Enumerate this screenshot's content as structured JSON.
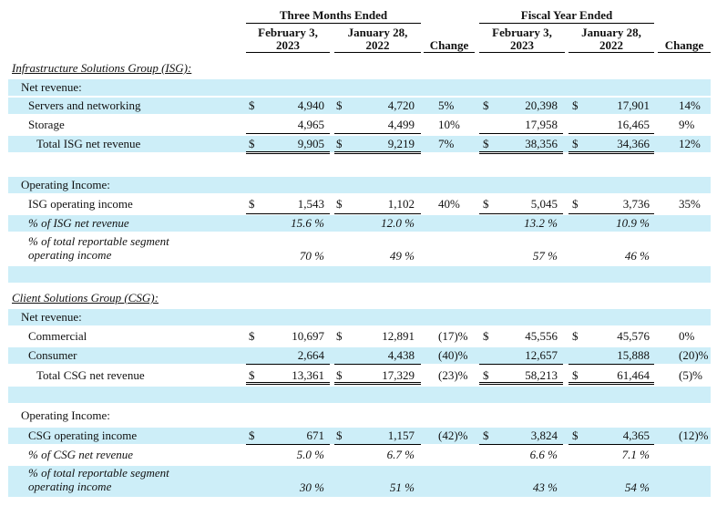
{
  "header": {
    "three_months": "Three Months Ended",
    "fiscal_year": "Fiscal Year Ended",
    "col_feb_line1": "February 3,",
    "col_feb_line2": "2023",
    "col_jan_line1": "January 28,",
    "col_jan_line2": "2022",
    "change": "Change"
  },
  "rows": [
    {
      "type": "section",
      "label": "Infrastructure Solutions Group (ISG):",
      "shaded": false
    },
    {
      "type": "label",
      "label": "Net revenue:",
      "shaded": true
    },
    {
      "type": "data",
      "label": "Servers and networking",
      "shaded": true,
      "indent": 1,
      "dollar": true,
      "q_cur": "4,940",
      "q_prev": "4,720",
      "q_chg": "5%",
      "f_cur": "20,398",
      "f_prev": "17,901",
      "f_chg": "14%"
    },
    {
      "type": "data",
      "label": "Storage",
      "shaded": false,
      "indent": 1,
      "dollar": false,
      "q_cur": "4,965",
      "q_prev": "4,499",
      "q_chg": "10%",
      "f_cur": "17,958",
      "f_prev": "16,465",
      "f_chg": "9%"
    },
    {
      "type": "data",
      "label": "Total ISG net revenue",
      "shaded": true,
      "indent": 2,
      "dollar": true,
      "q_cur": "9,905",
      "q_prev": "9,219",
      "q_chg": "7%",
      "f_cur": "38,356",
      "f_prev": "34,366",
      "f_chg": "12%"
    },
    {
      "type": "blank",
      "shaded": false
    },
    {
      "type": "label",
      "label": "Operating Income:",
      "shaded": true
    },
    {
      "type": "data",
      "label": "ISG operating income",
      "shaded": false,
      "indent": 1,
      "dollar": true,
      "q_cur": "1,543",
      "q_prev": "1,102",
      "q_chg": "40%",
      "f_cur": "5,045",
      "f_prev": "3,736",
      "f_chg": "35%"
    },
    {
      "type": "pct",
      "label": "% of ISG net revenue",
      "shaded": true,
      "q_cur": "15.6 %",
      "q_prev": "12.0 %",
      "f_cur": "13.2 %",
      "f_prev": "10.9 %"
    },
    {
      "type": "pct2",
      "label1": "% of total reportable segment",
      "label2": "operating income",
      "shaded": false,
      "q_cur": "70 %",
      "q_prev": "49 %",
      "f_cur": "57 %",
      "f_prev": "46 %"
    },
    {
      "type": "blank",
      "shaded": true
    },
    {
      "type": "section",
      "label": "Client Solutions Group (CSG):",
      "shaded": false
    },
    {
      "type": "label",
      "label": "Net revenue:",
      "shaded": true
    },
    {
      "type": "data",
      "label": "Commercial",
      "shaded": false,
      "indent": 1,
      "dollar": true,
      "q_cur": "10,697",
      "q_prev": "12,891",
      "q_chg": "(17)%",
      "f_cur": "45,556",
      "f_prev": "45,576",
      "f_chg": "0%"
    },
    {
      "type": "data",
      "label": "Consumer",
      "shaded": true,
      "indent": 1,
      "dollar": false,
      "q_cur": "2,664",
      "q_prev": "4,438",
      "q_chg": "(40)%",
      "f_cur": "12,657",
      "f_prev": "15,888",
      "f_chg": "(20)%"
    },
    {
      "type": "data",
      "label": "Total CSG net revenue",
      "shaded": false,
      "indent": 2,
      "dollar": true,
      "q_cur": "13,361",
      "q_prev": "17,329",
      "q_chg": "(23)%",
      "f_cur": "58,213",
      "f_prev": "61,464",
      "f_chg": "(5)%"
    },
    {
      "type": "blank",
      "shaded": true
    },
    {
      "type": "label",
      "label": "Operating Income:",
      "shaded": false
    },
    {
      "type": "data",
      "label": "CSG operating income",
      "shaded": true,
      "indent": 1,
      "dollar": true,
      "q_cur": "671",
      "q_prev": "1,157",
      "q_chg": "(42)%",
      "f_cur": "3,824",
      "f_prev": "4,365",
      "f_chg": "(12)%"
    },
    {
      "type": "pct",
      "label": "% of CSG net revenue",
      "shaded": false,
      "q_cur": "5.0 %",
      "q_prev": "6.7 %",
      "f_cur": "6.6 %",
      "f_prev": "7.1 %"
    },
    {
      "type": "pct2",
      "label1": "% of total reportable segment",
      "label2": "operating income",
      "shaded": true,
      "q_cur": "30 %",
      "q_prev": "51 %",
      "f_cur": "43 %",
      "f_prev": "54 %"
    }
  ],
  "currency_symbol": "$"
}
